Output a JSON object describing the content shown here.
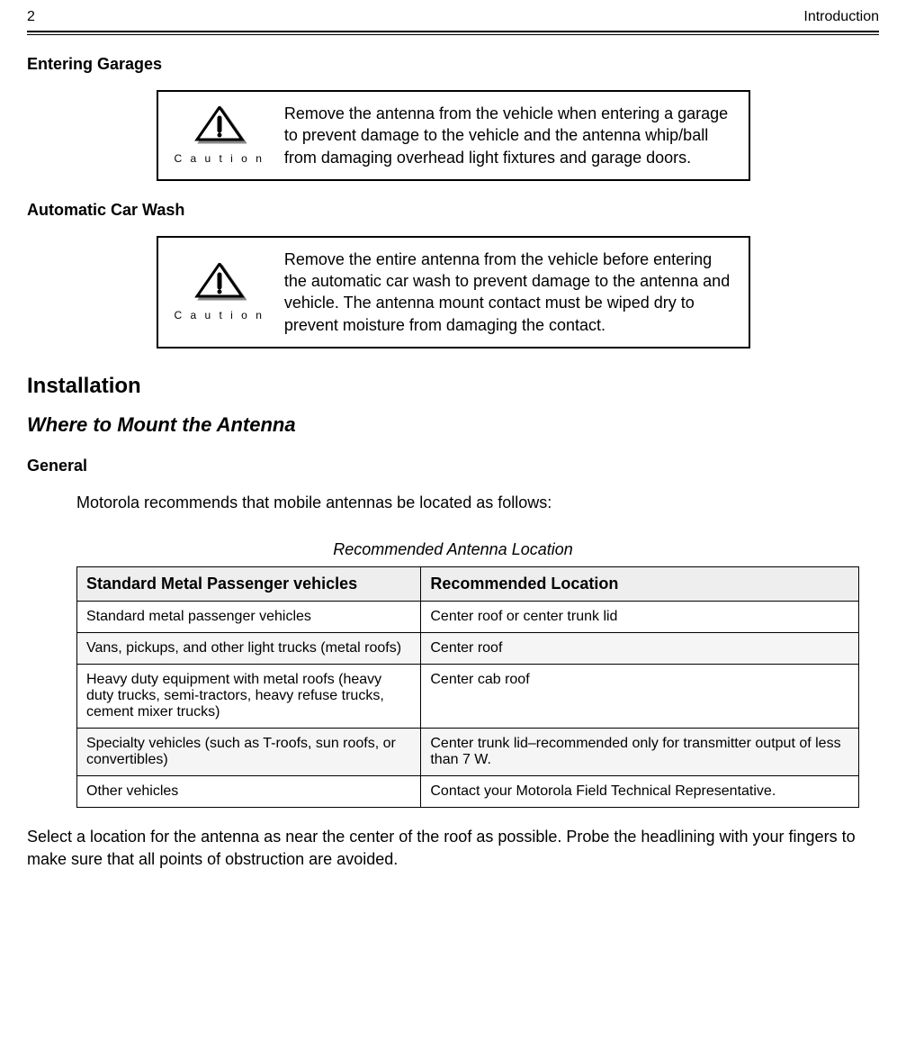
{
  "header": {
    "page_number": "2",
    "section": "Introduction"
  },
  "sections": {
    "entering_garages_heading": "Entering Garages",
    "automatic_car_wash_heading": "Automatic Car Wash",
    "installation_heading": "Installation",
    "where_to_mount_heading": "Where to Mount the Antenna",
    "general_heading": "General",
    "general_intro": "Motorola recommends that mobile antennas be located as follows:",
    "table_caption": "Recommended Antenna Location",
    "closing_text": "Select a location for the antenna as near the center of the roof as possible. Probe the headlining with your fingers to make sure that all points of obstruction are avoided."
  },
  "cautions": {
    "label": "C a u t i o n",
    "garages_text": "Remove the antenna from the vehicle when entering a garage to prevent damage to the vehicle and the antenna whip/ball from damaging overhead light fixtures and garage doors.",
    "carwash_text": "Remove the entire antenna from the vehicle before entering the automatic car wash to prevent damage to the antenna and vehicle. The antenna mount contact must be wiped dry to prevent moisture from damaging the contact."
  },
  "table": {
    "headers": {
      "col1": "Standard Metal Passenger vehicles",
      "col2": "Recommended Location"
    },
    "rows": [
      {
        "c1": "Standard metal passenger vehicles",
        "c2": "Center roof or center trunk lid",
        "alt": false
      },
      {
        "c1": "Vans, pickups, and other light trucks (metal roofs)",
        "c2": "Center roof",
        "alt": true
      },
      {
        "c1": "Heavy duty equipment with metal roofs (heavy duty trucks, semi-tractors, heavy refuse trucks, cement mixer trucks)",
        "c2": "Center cab roof",
        "alt": false
      },
      {
        "c1": "Specialty vehicles (such as T-roofs, sun roofs, or convertibles)",
        "c2": "Center trunk lid–recommended only for transmitter output of less than 7 W.",
        "alt": true
      },
      {
        "c1": "Other vehicles",
        "c2": "Contact your Motorola Field Technical Representative.",
        "alt": false
      }
    ]
  },
  "style": {
    "caution_icon": {
      "stroke": "#000000",
      "shadow": "#888888",
      "width": 60,
      "height": 40
    }
  }
}
